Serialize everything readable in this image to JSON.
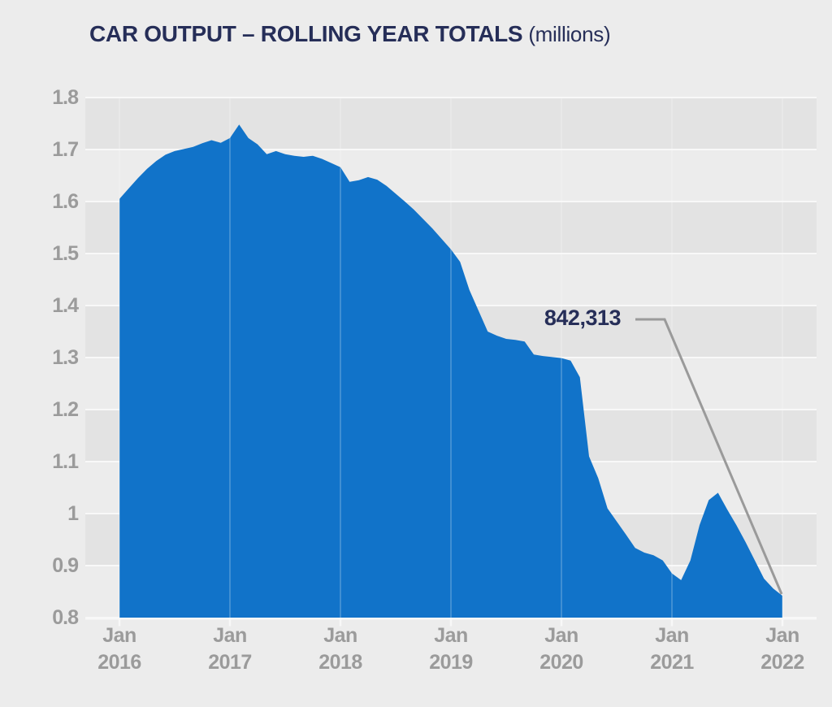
{
  "title": {
    "main": "CAR OUTPUT – ROLLING YEAR TOTALS",
    "suffix": "(millions)"
  },
  "annotation": {
    "label": "842,313"
  },
  "yaxis": {
    "tick_labels": [
      "1.8",
      "1.7",
      "1.6",
      "1.5",
      "1.4",
      "1.3",
      "1.2",
      "1.1",
      "1",
      "0.9",
      "0.8"
    ]
  },
  "xaxis": {
    "tick_labels": [
      {
        "month": "Jan",
        "year": "2016"
      },
      {
        "month": "Jan",
        "year": "2017"
      },
      {
        "month": "Jan",
        "year": "2018"
      },
      {
        "month": "Jan",
        "year": "2019"
      },
      {
        "month": "Jan",
        "year": "2020"
      },
      {
        "month": "Jan",
        "year": "2021"
      },
      {
        "month": "Jan",
        "year": "2022"
      }
    ]
  },
  "colors": {
    "background": "#ececec",
    "band": "#e3e3e3",
    "gridline": "#f8f8f8",
    "area": "#1173c9",
    "title_text": "#262e58",
    "axis_text": "#9b9b9b",
    "callout_line": "#9a9a9a"
  },
  "chart_data": {
    "type": "area",
    "title": "CAR OUTPUT – ROLLING YEAR TOTALS (millions)",
    "xlabel": "",
    "ylabel": "",
    "x_start": "2016-01",
    "x_end": "2022-01",
    "x_interval": "monthly",
    "ylim": [
      0.8,
      1.8
    ],
    "yticks": [
      1.8,
      1.7,
      1.6,
      1.5,
      1.4,
      1.3,
      1.2,
      1.1,
      1.0,
      0.9,
      0.8
    ],
    "xticks": [
      "Jan 2016",
      "Jan 2017",
      "Jan 2018",
      "Jan 2019",
      "Jan 2020",
      "Jan 2021",
      "Jan 2022"
    ],
    "grid": "alternating-horizontal-bands",
    "legend": "none",
    "series": [
      {
        "name": "Car output rolling year total (millions)",
        "values": [
          1.605,
          1.625,
          1.645,
          1.663,
          1.678,
          1.69,
          1.697,
          1.701,
          1.705,
          1.712,
          1.718,
          1.713,
          1.722,
          1.748,
          1.722,
          1.71,
          1.691,
          1.697,
          1.691,
          1.688,
          1.686,
          1.688,
          1.682,
          1.674,
          1.666,
          1.638,
          1.641,
          1.647,
          1.642,
          1.63,
          1.615,
          1.6,
          1.584,
          1.566,
          1.548,
          1.528,
          1.508,
          1.484,
          1.43,
          1.39,
          1.35,
          1.342,
          1.336,
          1.334,
          1.331,
          1.306,
          1.303,
          1.301,
          1.299,
          1.294,
          1.262,
          1.11,
          1.068,
          1.01,
          0.985,
          0.96,
          0.934,
          0.925,
          0.92,
          0.91,
          0.885,
          0.872,
          0.91,
          0.978,
          1.026,
          1.04,
          1.008,
          0.978,
          0.945,
          0.91,
          0.875,
          0.856,
          0.842
        ]
      }
    ],
    "annotations": [
      {
        "label": "842,313",
        "x": "2022-01",
        "y": 0.842313
      }
    ]
  }
}
